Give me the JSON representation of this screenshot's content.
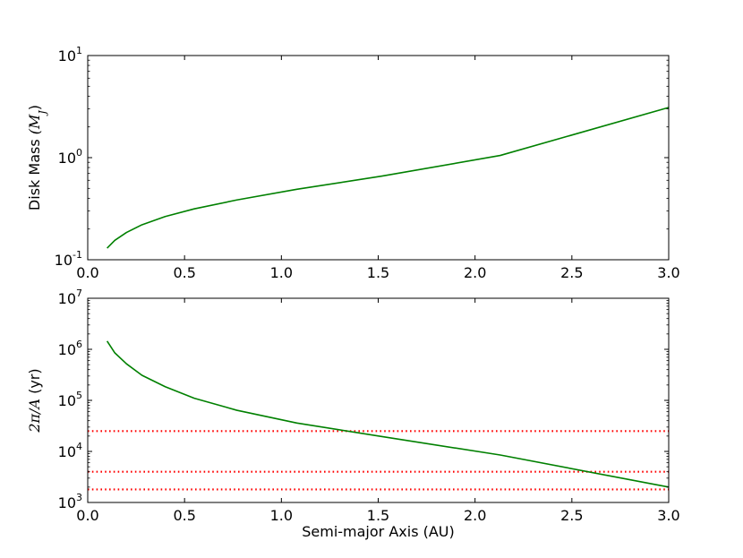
{
  "chart_data": [
    {
      "type": "line",
      "title": "",
      "xlabel": "",
      "ylabel": {
        "prefix": "Disk Mass ",
        "math": "(M",
        "sub": "J",
        "close": ")"
      },
      "xlim": [
        0.0,
        3.0
      ],
      "ylim": [
        0.1,
        10
      ],
      "yscale": "log",
      "grid": false,
      "x_ticks": [
        "0.0",
        "0.5",
        "1.0",
        "1.5",
        "2.0",
        "2.5",
        "3.0"
      ],
      "y_ticks": [
        {
          "value": 0.1,
          "base": "10",
          "exp": "-1"
        },
        {
          "value": 1,
          "base": "10",
          "exp": "0"
        },
        {
          "value": 10,
          "base": "10",
          "exp": "1"
        }
      ],
      "series": [
        {
          "color": "#008000",
          "x": [
            0.1,
            0.14,
            0.2,
            0.28,
            0.4,
            0.55,
            0.77,
            1.08,
            1.52,
            2.13,
            3.0
          ],
          "y": [
            0.13,
            0.155,
            0.185,
            0.22,
            0.265,
            0.315,
            0.385,
            0.49,
            0.66,
            1.05,
            3.1
          ]
        }
      ]
    },
    {
      "type": "line",
      "title": "",
      "xlabel": "Semi-major Axis (AU)",
      "ylabel": {
        "prefix": "",
        "math": "2π/A",
        "sub": "",
        "close": " (yr)"
      },
      "xlim": [
        0.0,
        3.0
      ],
      "ylim": [
        1000,
        10000000
      ],
      "yscale": "log",
      "grid": false,
      "x_ticks": [
        "0.0",
        "0.5",
        "1.0",
        "1.5",
        "2.0",
        "2.5",
        "3.0"
      ],
      "y_ticks": [
        {
          "value": 1000,
          "base": "10",
          "exp": "3"
        },
        {
          "value": 10000,
          "base": "10",
          "exp": "4"
        },
        {
          "value": 100000,
          "base": "10",
          "exp": "5"
        },
        {
          "value": 1000000,
          "base": "10",
          "exp": "6"
        },
        {
          "value": 10000000,
          "base": "10",
          "exp": "7"
        }
      ],
      "series": [
        {
          "color": "#008000",
          "x": [
            0.1,
            0.14,
            0.2,
            0.28,
            0.4,
            0.55,
            0.77,
            1.08,
            1.52,
            2.13,
            3.0
          ],
          "y": [
            1450000,
            850000,
            520000,
            310000,
            185000,
            110000,
            64000,
            36000,
            19500,
            8500,
            2000
          ]
        }
      ],
      "reference_lines": [
        {
          "y": 25000,
          "color": "#ff0000",
          "style": "dotted"
        },
        {
          "y": 4000,
          "color": "#ff0000",
          "style": "dotted"
        },
        {
          "y": 1800,
          "color": "#ff0000",
          "style": "dotted"
        }
      ]
    }
  ]
}
